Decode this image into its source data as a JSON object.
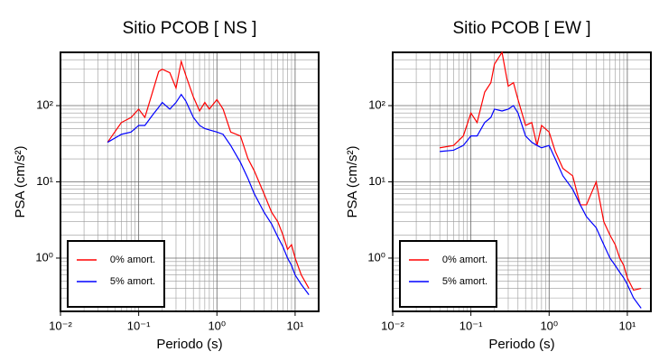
{
  "chart_data": [
    {
      "type": "line",
      "title": "Sitio PCOB [ NS ]",
      "xlabel": "Periodo (s)",
      "ylabel": "PSA (cm/s²)",
      "xscale": "log",
      "yscale": "log",
      "grid": true,
      "legend": "lower left",
      "xlim": [
        0.01,
        20
      ],
      "ylim": [
        0.2,
        500
      ],
      "xticks": [
        {
          "value": 0.01,
          "label": "10⁻²"
        },
        {
          "value": 0.1,
          "label": "10⁻¹"
        },
        {
          "value": 1,
          "label": "10⁰"
        },
        {
          "value": 10,
          "label": "10¹"
        }
      ],
      "yticks": [
        {
          "value": 1,
          "label": "10⁰"
        },
        {
          "value": 10,
          "label": "10¹"
        },
        {
          "value": 100,
          "label": "10²"
        }
      ],
      "x": [
        0.04,
        0.06,
        0.08,
        0.1,
        0.12,
        0.15,
        0.18,
        0.2,
        0.25,
        0.3,
        0.35,
        0.4,
        0.5,
        0.6,
        0.7,
        0.8,
        1.0,
        1.2,
        1.5,
        2,
        2.5,
        3,
        4,
        5,
        6,
        7,
        8,
        9,
        10,
        12,
        15
      ],
      "series": [
        {
          "name": "0% amort.",
          "color": "#ff0000",
          "values": [
            33,
            60,
            70,
            90,
            70,
            150,
            280,
            300,
            270,
            170,
            380,
            250,
            130,
            85,
            110,
            90,
            120,
            90,
            45,
            40,
            20,
            14,
            7,
            4,
            3,
            2,
            1.3,
            1.5,
            1.0,
            0.6,
            0.4
          ]
        },
        {
          "name": "5% amort.",
          "color": "#0000ff",
          "values": [
            33,
            42,
            45,
            55,
            55,
            75,
            95,
            110,
            90,
            110,
            140,
            115,
            70,
            55,
            50,
            48,
            45,
            42,
            30,
            18,
            11,
            7,
            4,
            2.8,
            1.9,
            1.4,
            1.0,
            0.8,
            0.6,
            0.45,
            0.33
          ]
        }
      ]
    },
    {
      "type": "line",
      "title": "Sitio PCOB [ EW ]",
      "xlabel": "Periodo (s)",
      "ylabel": "PSA (cm/s²)",
      "xscale": "log",
      "yscale": "log",
      "grid": true,
      "legend": "lower left",
      "xlim": [
        0.01,
        20
      ],
      "ylim": [
        0.2,
        500
      ],
      "xticks": [
        {
          "value": 0.01,
          "label": "10⁻²"
        },
        {
          "value": 0.1,
          "label": "10⁻¹"
        },
        {
          "value": 1,
          "label": "10⁰"
        },
        {
          "value": 10,
          "label": "10¹"
        }
      ],
      "yticks": [
        {
          "value": 1,
          "label": "10⁰"
        },
        {
          "value": 10,
          "label": "10¹"
        },
        {
          "value": 100,
          "label": "10²"
        }
      ],
      "x": [
        0.04,
        0.06,
        0.08,
        0.1,
        0.12,
        0.15,
        0.18,
        0.2,
        0.25,
        0.3,
        0.35,
        0.4,
        0.5,
        0.6,
        0.7,
        0.8,
        1.0,
        1.2,
        1.5,
        2,
        2.5,
        3,
        4,
        5,
        6,
        7,
        8,
        9,
        10,
        12,
        15
      ],
      "series": [
        {
          "name": "0% amort.",
          "color": "#ff0000",
          "values": [
            28,
            30,
            40,
            80,
            60,
            150,
            200,
            350,
            500,
            180,
            200,
            120,
            55,
            60,
            30,
            55,
            45,
            25,
            15,
            12,
            5,
            5,
            10,
            3,
            2,
            1.5,
            1,
            0.8,
            0.55,
            0.38,
            0.4
          ]
        },
        {
          "name": "5% amort.",
          "color": "#0000ff",
          "values": [
            25,
            26,
            30,
            40,
            40,
            60,
            70,
            90,
            85,
            90,
            100,
            80,
            40,
            33,
            30,
            28,
            30,
            20,
            12,
            8,
            5,
            3.5,
            2.5,
            1.5,
            1.0,
            0.8,
            0.65,
            0.55,
            0.45,
            0.3,
            0.22
          ]
        }
      ]
    }
  ]
}
